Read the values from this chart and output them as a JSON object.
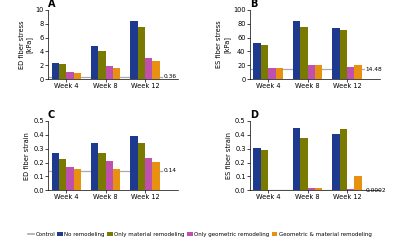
{
  "panel_A": {
    "title": "A",
    "ylabel": "ED fiber stress\n[kPa]",
    "ylim": [
      0,
      10
    ],
    "yticks": [
      0,
      2,
      4,
      6,
      8,
      10
    ],
    "control_line": 0.36,
    "control_label": "0.36",
    "weeks": [
      "Week 4",
      "Week 8",
      "Week 12"
    ],
    "no_remodel": [
      2.35,
      4.75,
      8.45
    ],
    "only_material": [
      2.15,
      4.0,
      7.45
    ],
    "only_geometric": [
      1.05,
      1.85,
      3.0
    ],
    "geo_material": [
      0.95,
      1.6,
      2.6
    ]
  },
  "panel_B": {
    "title": "B",
    "ylabel": "ES fiber stress\n[kPa]",
    "ylim": [
      0,
      100
    ],
    "yticks": [
      0,
      20,
      40,
      60,
      80,
      100
    ],
    "control_line": 14.48,
    "control_label": "14.48",
    "weeks": [
      "Week 4",
      "Week 8",
      "Week 12"
    ],
    "no_remodel": [
      52.0,
      84.0,
      74.0
    ],
    "only_material": [
      49.0,
      75.0,
      71.0
    ],
    "only_geometric": [
      16.5,
      21.0,
      18.0
    ],
    "geo_material": [
      16.0,
      20.0,
      21.0
    ]
  },
  "panel_C": {
    "title": "C",
    "ylabel": "ED fiber strain",
    "ylim": [
      0,
      0.5
    ],
    "yticks": [
      0.0,
      0.1,
      0.2,
      0.3,
      0.4,
      0.5
    ],
    "control_line": 0.14,
    "control_label": "0.14",
    "weeks": [
      "Week 4",
      "Week 8",
      "Week 12"
    ],
    "no_remodel": [
      0.27,
      0.34,
      0.39
    ],
    "only_material": [
      0.225,
      0.27,
      0.34
    ],
    "only_geometric": [
      0.165,
      0.21,
      0.235
    ],
    "geo_material": [
      0.155,
      0.155,
      0.205
    ]
  },
  "panel_D": {
    "title": "D",
    "ylabel": "ES fiber strain",
    "ylim": [
      0,
      0.5
    ],
    "yticks": [
      0.0,
      0.1,
      0.2,
      0.3,
      0.4,
      0.5
    ],
    "control_line": 0.0002,
    "control_label": "0.0002",
    "weeks": [
      "Week 4",
      "Week 8",
      "Week 12"
    ],
    "no_remodel": [
      0.305,
      0.45,
      0.405
    ],
    "only_material": [
      0.29,
      0.38,
      0.445
    ],
    "only_geometric": [
      0.005,
      0.02,
      0.008
    ],
    "geo_material": [
      0.005,
      0.015,
      0.105
    ]
  },
  "colors": {
    "no_remodel": "#1e3a8f",
    "only_material": "#7a7a00",
    "only_geometric": "#c050b0",
    "geo_material": "#e89010",
    "control": "#aaaaaa"
  },
  "legend": {
    "control": "Control",
    "no_remodel": "No remodeling",
    "only_material": "Only material remodeling",
    "only_geometric": "Only geometric remodeling",
    "geo_material": "Geometric & material remodeling"
  },
  "figsize": [
    4.0,
    2.44
  ],
  "dpi": 100
}
